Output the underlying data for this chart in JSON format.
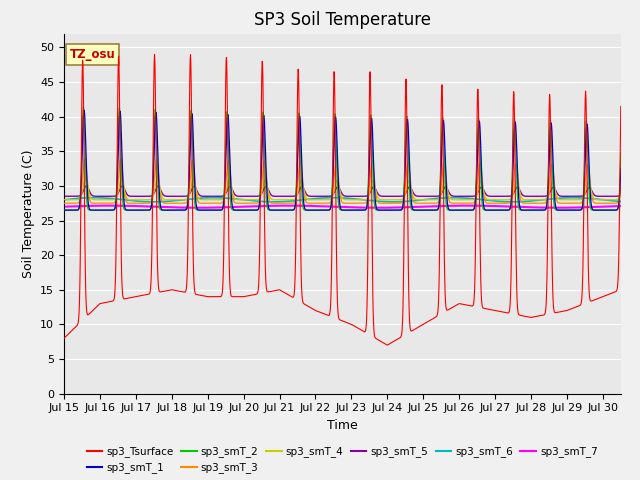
{
  "title": "SP3 Soil Temperature",
  "ylabel": "Soil Temperature (C)",
  "xlabel": "Time",
  "xlim": [
    0,
    15.5
  ],
  "ylim": [
    0,
    52
  ],
  "yticks": [
    0,
    5,
    10,
    15,
    20,
    25,
    30,
    35,
    40,
    45,
    50
  ],
  "xtick_labels": [
    "Jul 15",
    "Jul 16",
    "Jul 17",
    "Jul 18",
    "Jul 19",
    "Jul 20",
    "Jul 21",
    "Jul 22",
    "Jul 23",
    "Jul 24",
    "Jul 25",
    "Jul 26",
    "Jul 27",
    "Jul 28",
    "Jul 29",
    "Jul 30"
  ],
  "xtick_positions": [
    0,
    1,
    2,
    3,
    4,
    5,
    6,
    7,
    8,
    9,
    10,
    11,
    12,
    13,
    14,
    15
  ],
  "annotation_text": "TZ_osu",
  "annotation_bg": "#FFFFC0",
  "annotation_border": "#A08040",
  "annotation_text_color": "#CC0000",
  "series_colors": {
    "sp3_Tsurface": "#FF0000",
    "sp3_smT_1": "#0000CC",
    "sp3_smT_2": "#00CC00",
    "sp3_smT_3": "#FF8800",
    "sp3_smT_4": "#CCCC00",
    "sp3_smT_5": "#8800AA",
    "sp3_smT_6": "#00BBBB",
    "sp3_smT_7": "#FF00FF"
  },
  "background_color": "#E8E8E8",
  "grid_color": "#FFFFFF",
  "title_fontsize": 12,
  "axis_label_fontsize": 9,
  "tick_fontsize": 8
}
